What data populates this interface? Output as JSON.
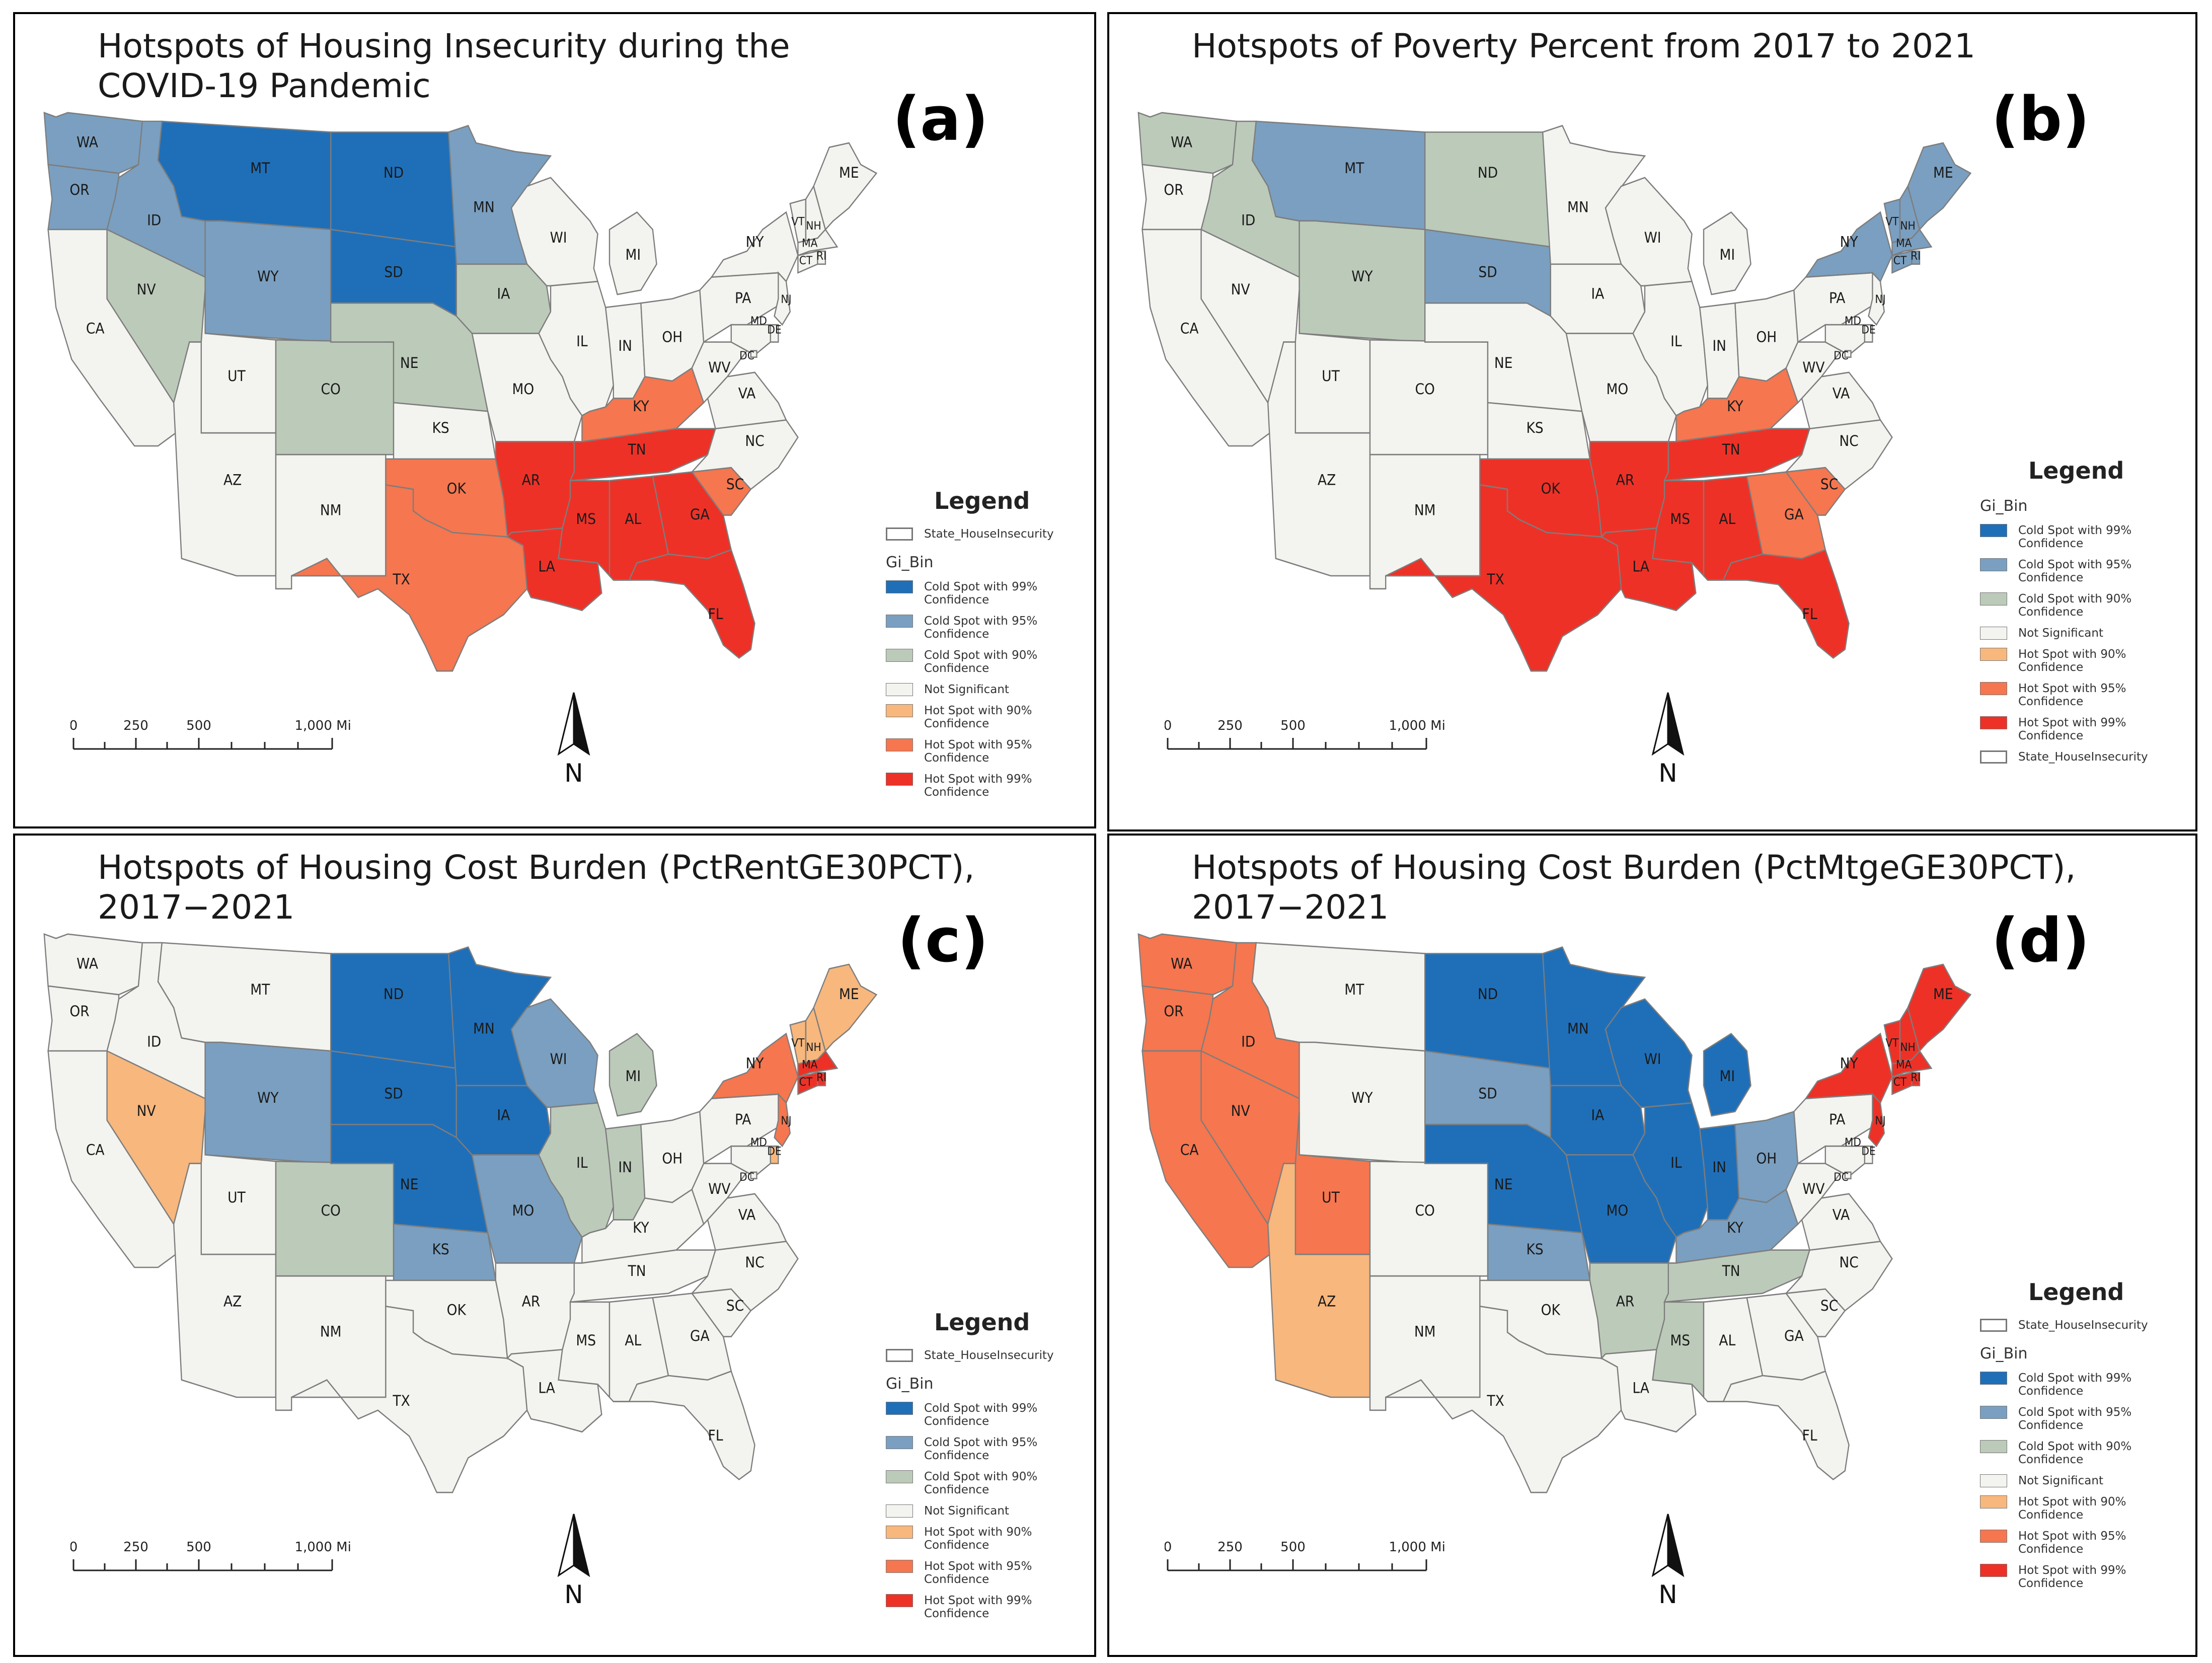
{
  "panels": [
    {
      "id": "a",
      "title": "Hotspots of Housing Insecurity during the\nCOVID-19 Pandemic",
      "label": "(a)",
      "legend_top_layer": true
    },
    {
      "id": "b",
      "title": "Hotspots of Poverty Percent from 2017 to 2021",
      "label": "(b)",
      "legend_top_layer": false
    },
    {
      "id": "c",
      "title": "Hotspots of Housing Cost Burden (PctRentGE30PCT), 2017−2021",
      "label": "(c)",
      "legend_top_layer": true
    },
    {
      "id": "d",
      "title": "Hotspots of Housing Cost Burden (PctMtgeGE30PCT), 2017−2021",
      "label": "(d)",
      "legend_top_layer": true
    }
  ],
  "legend": {
    "title": "Legend",
    "layer_name": "State_HouseInsecurity",
    "field": "Gi_Bin",
    "classes": [
      {
        "key": "c99",
        "line1": "Cold Spot with 99%",
        "line2": "Confidence",
        "color": "#1f6fb8"
      },
      {
        "key": "c95",
        "line1": "Cold Spot with 95%",
        "line2": "Confidence",
        "color": "#7a9fc0"
      },
      {
        "key": "c90",
        "line1": "Cold Spot with 90%",
        "line2": "Confidence",
        "color": "#bccab9"
      },
      {
        "key": "ns",
        "line1": "Not Significant",
        "line2": "",
        "color": "#f3f3ef"
      },
      {
        "key": "h90",
        "line1": "Hot Spot with 90%",
        "line2": "Confidence",
        "color": "#f7b77d"
      },
      {
        "key": "h95",
        "line1": "Hot Spot with 95%",
        "line2": "Confidence",
        "color": "#f5764f"
      },
      {
        "key": "h99",
        "line1": "Hot Spot with 99%",
        "line2": "Confidence",
        "color": "#ee3127"
      }
    ]
  },
  "scale_bar": {
    "labels": [
      "0",
      "250",
      "500",
      "1,000 Miles"
    ]
  },
  "north_arrow": {
    "label": "N"
  },
  "states": [
    "WA",
    "OR",
    "CA",
    "ID",
    "NV",
    "MT",
    "WY",
    "UT",
    "AZ",
    "CO",
    "NM",
    "ND",
    "SD",
    "NE",
    "KS",
    "OK",
    "TX",
    "MN",
    "IA",
    "MO",
    "AR",
    "LA",
    "WI",
    "IL",
    "MI",
    "IN",
    "OH",
    "KY",
    "TN",
    "MS",
    "AL",
    "GA",
    "FL",
    "SC",
    "NC",
    "VA",
    "WV",
    "PA",
    "NY",
    "VT",
    "NH",
    "ME",
    "MA",
    "RI",
    "CT",
    "NJ",
    "DE",
    "MD",
    "DC"
  ],
  "classifications": {
    "a": {
      "WA": "c95",
      "OR": "c95",
      "ID": "c95",
      "MT": "c99",
      "ND": "c99",
      "SD": "c99",
      "WY": "c95",
      "MN": "c95",
      "NV": "c90",
      "CO": "c90",
      "NE": "c90",
      "IA": "c90",
      "OK": "h95",
      "TX": "h95",
      "KY": "h95",
      "SC": "h95",
      "AR": "h99",
      "LA": "h99",
      "MS": "h99",
      "AL": "h99",
      "TN": "h99",
      "GA": "h99",
      "FL": "h99"
    },
    "b": {
      "WA": "c90",
      "ID": "c90",
      "ND": "c90",
      "WY": "c90",
      "MT": "c95",
      "SD": "c95",
      "NY": "c95",
      "VT": "c95",
      "NH": "c95",
      "ME": "c95",
      "MA": "c95",
      "RI": "c95",
      "CT": "c95",
      "KY": "h95",
      "GA": "h95",
      "SC": "h95",
      "TX": "h99",
      "OK": "h99",
      "AR": "h99",
      "LA": "h99",
      "MS": "h99",
      "AL": "h99",
      "TN": "h99",
      "FL": "h99"
    },
    "c": {
      "ND": "c99",
      "SD": "c99",
      "NE": "c99",
      "MN": "c99",
      "IA": "c99",
      "WY": "c95",
      "WI": "c95",
      "KS": "c95",
      "MO": "c95",
      "CO": "c90",
      "MI": "c90",
      "IL": "c90",
      "IN": "c90",
      "NV": "h90",
      "VT": "h90",
      "NH": "h90",
      "ME": "h90",
      "DE": "h90",
      "NY": "h95",
      "NJ": "h95",
      "MA": "h99",
      "RI": "h99",
      "CT": "h99"
    },
    "d": {
      "WA": "h95",
      "OR": "h95",
      "CA": "h95",
      "ID": "h95",
      "NV": "h95",
      "UT": "h95",
      "AZ": "h90",
      "ND": "c99",
      "NE": "c99",
      "MN": "c99",
      "WI": "c99",
      "IA": "c99",
      "MO": "c99",
      "IL": "c99",
      "IN": "c99",
      "MI": "c99",
      "SD": "c95",
      "KS": "c95",
      "OH": "c95",
      "KY": "c95",
      "AR": "c90",
      "TN": "c90",
      "MS": "c90",
      "NY": "h99",
      "VT": "h99",
      "NH": "h99",
      "ME": "h99",
      "MA": "h99",
      "RI": "h99",
      "CT": "h99",
      "NJ": "h99"
    }
  }
}
